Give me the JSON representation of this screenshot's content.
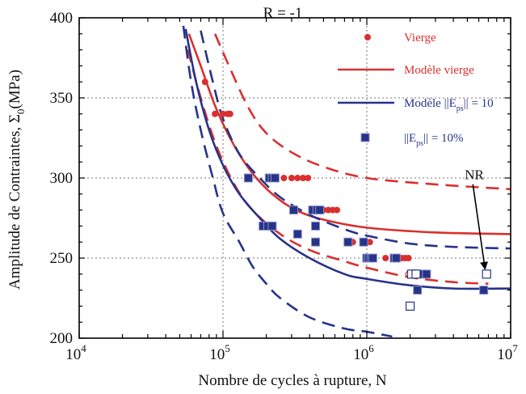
{
  "chart_data": {
    "type": "scatter",
    "title": "R = -1",
    "xlabel": "Nombre de cycles à rupture, N",
    "ylabel": "Amplitude de Contraintes, Σ",
    "ylabel_sub": "0",
    "ylabel_unit": "(MPa)",
    "xscale": "log",
    "xlim": [
      10000,
      10000000
    ],
    "ylim": [
      200,
      400
    ],
    "grid": true,
    "x_ticks": [
      {
        "value": 10000,
        "base": "10",
        "exp": "4"
      },
      {
        "value": 100000,
        "base": "10",
        "exp": "5"
      },
      {
        "value": 1000000,
        "base": "10",
        "exp": "6"
      },
      {
        "value": 10000000,
        "base": "10",
        "exp": "7"
      }
    ],
    "y_ticks": [
      {
        "value": 200,
        "label": "200"
      },
      {
        "value": 250,
        "label": "250"
      },
      {
        "value": 300,
        "label": "300"
      },
      {
        "value": 350,
        "label": "350"
      },
      {
        "value": 400,
        "label": "400"
      }
    ],
    "legend_position": "top-right",
    "colors": {
      "red": "#d9302f",
      "blue": "#27338a"
    },
    "legend": [
      {
        "label": "Vierge",
        "kind": "marker-circle",
        "color": "#d9302f"
      },
      {
        "label": "Modèle vierge",
        "kind": "line",
        "color": "#d9302f"
      },
      {
        "label": "Modèle ||E",
        "sub": "ps",
        "suffix": "|| = 10",
        "kind": "line",
        "color": "#27338a"
      },
      {
        "label": "||E",
        "sub": "ps",
        "suffix": "|| = 10%",
        "kind": "marker-square",
        "color": "#27338a"
      }
    ],
    "series": [
      {
        "name": "Vierge",
        "kind": "scatter-circle",
        "color": "#d9302f",
        "points": [
          [
            75000,
            360
          ],
          [
            88000,
            340
          ],
          [
            100000,
            340
          ],
          [
            108000,
            340
          ],
          [
            112000,
            340
          ],
          [
            215000,
            300
          ],
          [
            235000,
            300
          ],
          [
            265000,
            300
          ],
          [
            300000,
            300
          ],
          [
            330000,
            300
          ],
          [
            360000,
            300
          ],
          [
            390000,
            300
          ],
          [
            460000,
            280
          ],
          [
            500000,
            280
          ],
          [
            540000,
            280
          ],
          [
            580000,
            280
          ],
          [
            620000,
            280
          ],
          [
            750000,
            260
          ],
          [
            800000,
            260
          ],
          [
            950000,
            260
          ],
          [
            1050000,
            260
          ],
          [
            1350000,
            250
          ],
          [
            1550000,
            250
          ],
          [
            1750000,
            250
          ],
          [
            1850000,
            250
          ],
          [
            1950000,
            250
          ]
        ],
        "hollow_points": [
          [
            1950000,
            240
          ]
        ]
      },
      {
        "name": "||E|| = 10%",
        "kind": "scatter-square",
        "color": "#27338a",
        "points": [
          [
            150000,
            300
          ],
          [
            210000,
            300
          ],
          [
            220000,
            300
          ],
          [
            230000,
            300
          ],
          [
            190000,
            270
          ],
          [
            205000,
            270
          ],
          [
            220000,
            270
          ],
          [
            310000,
            280
          ],
          [
            420000,
            280
          ],
          [
            450000,
            280
          ],
          [
            470000,
            280
          ],
          [
            330000,
            265
          ],
          [
            440000,
            270
          ],
          [
            440000,
            260
          ],
          [
            740000,
            260
          ],
          [
            950000,
            260
          ],
          [
            1000000,
            250
          ],
          [
            1030000,
            250
          ],
          [
            1070000,
            250
          ],
          [
            1100000,
            250
          ],
          [
            1550000,
            250
          ],
          [
            1600000,
            250
          ],
          [
            2400000,
            240
          ],
          [
            2600000,
            240
          ],
          [
            2250000,
            230
          ],
          [
            6500000,
            230
          ]
        ],
        "hollow_points": [
          [
            2050000,
            240
          ],
          [
            2200000,
            240
          ],
          [
            2000000,
            220
          ],
          [
            6800000,
            240
          ]
        ]
      },
      {
        "name": "Modèle vierge",
        "kind": "line",
        "color": "#d9302f",
        "dash": false,
        "points": [
          [
            58000,
            390
          ],
          [
            70000,
            370
          ],
          [
            90000,
            343
          ],
          [
            120000,
            320
          ],
          [
            160000,
            303
          ],
          [
            220000,
            290
          ],
          [
            320000,
            280
          ],
          [
            500000,
            274
          ],
          [
            1000000,
            269
          ],
          [
            3000000,
            266
          ],
          [
            10000000,
            265
          ]
        ]
      },
      {
        "name": "Modèle vierge (borne haute)",
        "kind": "line",
        "color": "#d9302f",
        "dash": true,
        "points": [
          [
            88000,
            390
          ],
          [
            110000,
            370
          ],
          [
            150000,
            344
          ],
          [
            200000,
            328
          ],
          [
            300000,
            316
          ],
          [
            500000,
            307
          ],
          [
            1000000,
            300
          ],
          [
            3000000,
            296
          ],
          [
            10000000,
            293
          ]
        ]
      },
      {
        "name": "Modèle vierge (borne basse)",
        "kind": "line",
        "color": "#d9302f",
        "dash": true,
        "points": [
          [
            57000,
            380
          ],
          [
            70000,
            350
          ],
          [
            90000,
            320
          ],
          [
            120000,
            296
          ],
          [
            160000,
            280
          ],
          [
            250000,
            265
          ],
          [
            400000,
            255
          ],
          [
            700000,
            248
          ],
          [
            1000000,
            244
          ],
          [
            2000000,
            238
          ],
          [
            4000000,
            235
          ],
          [
            7000000,
            234
          ]
        ]
      },
      {
        "name": "Modèle ||E|| = 10",
        "kind": "line",
        "color": "#27338a",
        "dash": false,
        "points": [
          [
            55000,
            393
          ],
          [
            65000,
            360
          ],
          [
            80000,
            330
          ],
          [
            100000,
            308
          ],
          [
            130000,
            290
          ],
          [
            180000,
            275
          ],
          [
            250000,
            262
          ],
          [
            400000,
            250
          ],
          [
            700000,
            240
          ],
          [
            1000000,
            237
          ],
          [
            2000000,
            233
          ],
          [
            4000000,
            231
          ],
          [
            10000000,
            231
          ]
        ]
      },
      {
        "name": "Modèle ||E|| = 10 (borne haute)",
        "kind": "line",
        "color": "#27338a",
        "dash": true,
        "points": [
          [
            70000,
            392
          ],
          [
            85000,
            360
          ],
          [
            100000,
            337
          ],
          [
            130000,
            315
          ],
          [
            180000,
            300
          ],
          [
            250000,
            288
          ],
          [
            400000,
            277
          ],
          [
            700000,
            268
          ],
          [
            1000000,
            264
          ],
          [
            2000000,
            259
          ],
          [
            4000000,
            257
          ],
          [
            10000000,
            256
          ]
        ]
      },
      {
        "name": "Modèle ||E|| = 10 (borne basse)",
        "kind": "line",
        "color": "#27338a",
        "dash": true,
        "points": [
          [
            53000,
            395
          ],
          [
            60000,
            360
          ],
          [
            70000,
            330
          ],
          [
            85000,
            300
          ],
          [
            100000,
            278
          ],
          [
            130000,
            260
          ],
          [
            160000,
            245
          ],
          [
            200000,
            234
          ],
          [
            250000,
            225
          ],
          [
            400000,
            213
          ],
          [
            700000,
            206
          ],
          [
            1000000,
            204
          ],
          [
            1500000,
            201
          ]
        ]
      }
    ],
    "annotations": [
      {
        "text": "NR",
        "arrow_to": [
          6800000,
          240
        ],
        "label_at": [
          4800000,
          285
        ]
      }
    ]
  }
}
